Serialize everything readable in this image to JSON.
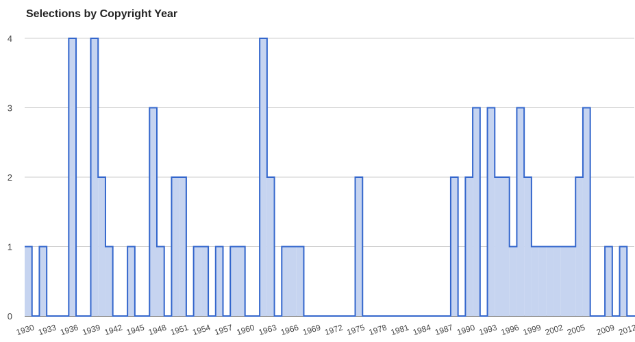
{
  "chart_data": {
    "type": "area",
    "title": "Selections by Copyright Year",
    "xlabel": "",
    "ylabel": "",
    "x_tick_labels": [
      1930,
      1933,
      1936,
      1939,
      1942,
      1945,
      1948,
      1951,
      1954,
      1957,
      1960,
      1963,
      1966,
      1969,
      1972,
      1975,
      1978,
      1981,
      1984,
      1987,
      1990,
      1993,
      1996,
      1999,
      2002,
      2005,
      2009,
      2012
    ],
    "y_tick_labels": [
      0,
      1,
      2,
      3,
      4
    ],
    "ylim": [
      0,
      4
    ],
    "grid": true,
    "legend": "none",
    "step": true,
    "series": [
      {
        "x": [
          1930,
          1931,
          1932,
          1933,
          1934,
          1935,
          1936,
          1937,
          1938,
          1939,
          1940,
          1941,
          1942,
          1943,
          1944,
          1945,
          1946,
          1947,
          1948,
          1949,
          1950,
          1951,
          1952,
          1953,
          1954,
          1955,
          1956,
          1957,
          1958,
          1959,
          1960,
          1961,
          1962,
          1963,
          1964,
          1965,
          1966,
          1967,
          1968,
          1969,
          1970,
          1971,
          1972,
          1973,
          1974,
          1975,
          1976,
          1977,
          1978,
          1979,
          1980,
          1981,
          1982,
          1983,
          1984,
          1985,
          1986,
          1987,
          1988,
          1989,
          1990,
          1991,
          1992,
          1993,
          1994,
          1995,
          1996,
          1997,
          1998,
          1999,
          2000,
          2001,
          2002,
          2003,
          2004,
          2005,
          2006,
          2007,
          2008,
          2009,
          2010,
          2011,
          2012,
          2013
        ],
        "values": [
          1,
          0,
          1,
          0,
          0,
          0,
          4,
          0,
          0,
          4,
          2,
          1,
          0,
          0,
          1,
          0,
          0,
          3,
          1,
          0,
          2,
          2,
          0,
          1,
          1,
          0,
          1,
          0,
          1,
          1,
          0,
          0,
          4,
          2,
          0,
          1,
          1,
          1,
          0,
          0,
          0,
          0,
          0,
          0,
          0,
          2,
          0,
          0,
          0,
          0,
          0,
          0,
          0,
          0,
          0,
          0,
          0,
          0,
          2,
          0,
          2,
          3,
          0,
          3,
          2,
          2,
          1,
          3,
          2,
          1,
          1,
          1,
          1,
          1,
          1,
          2,
          3,
          0,
          0,
          1,
          0,
          1,
          0,
          0
        ]
      }
    ],
    "colors": {
      "line": "#3366cc",
      "fill": "#c6d4f0",
      "grid": "#cccccc",
      "baseline": "#333333"
    }
  }
}
